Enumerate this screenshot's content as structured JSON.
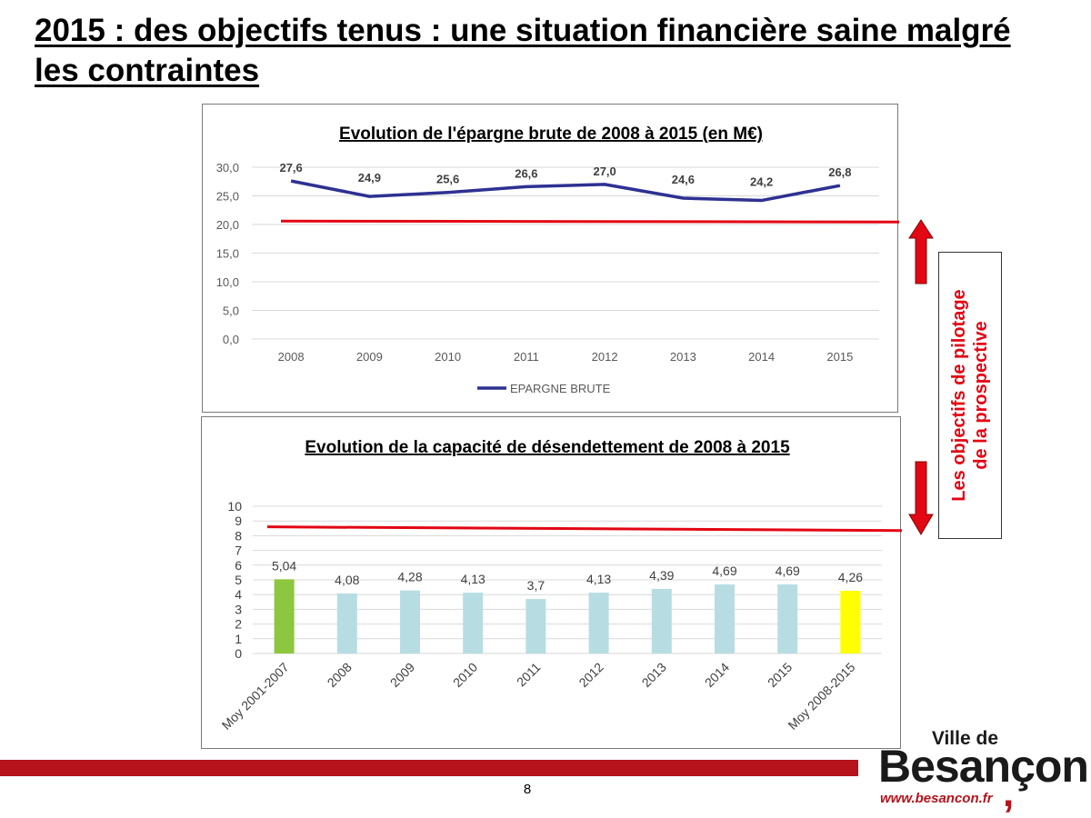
{
  "slide": {
    "title": "2015 : des objectifs tenus : une situation financière saine malgré les contraintes",
    "side_label_line1": "Les objectifs de pilotage",
    "side_label_line2": "de la prospective",
    "page_number": "8",
    "colors": {
      "accent_red": "#e30613",
      "band_red": "#b5121b",
      "line_navy": "#2e3192"
    }
  },
  "logo": {
    "line1": "Ville de",
    "line2": "Besançon",
    "url": "www.besancon.fr"
  },
  "chart_data": [
    {
      "type": "line",
      "title": "Evolution de l'épargne brute de 2008 à 2015 (en M€)",
      "categories": [
        "2008",
        "2009",
        "2010",
        "2011",
        "2012",
        "2013",
        "2014",
        "2015"
      ],
      "series": [
        {
          "name": "EPARGNE BRUTE",
          "values": [
            27.6,
            24.9,
            25.6,
            26.6,
            27.0,
            24.6,
            24.2,
            26.8
          ],
          "color": "#2e3192"
        }
      ],
      "data_labels": [
        "27,6",
        "24,9",
        "25,6",
        "26,6",
        "27,0",
        "24,6",
        "24,2",
        "26,8"
      ],
      "y_ticks": [
        "0,0",
        "5,0",
        "10,0",
        "15,0",
        "20,0",
        "25,0",
        "30,0"
      ],
      "ylim": [
        0,
        30
      ],
      "threshold_line": {
        "value": 20.6,
        "color": "#e30613"
      },
      "grid": true,
      "legend": "bottom"
    },
    {
      "type": "bar",
      "title": "Evolution de la capacité de désendettement de 2008 à 2015",
      "categories": [
        "Moy 2001-2007",
        "2008",
        "2009",
        "2010",
        "2011",
        "2012",
        "2013",
        "2014",
        "2015",
        "Moy 2008-2015"
      ],
      "values": [
        5.04,
        4.08,
        4.28,
        4.13,
        3.7,
        4.13,
        4.39,
        4.69,
        4.69,
        4.26
      ],
      "data_labels": [
        "5,04",
        "4,08",
        "4,28",
        "4,13",
        "3,7",
        "4,13",
        "4,39",
        "4,69",
        "4,69",
        "4,26"
      ],
      "bar_colors": [
        "#8dc63f",
        "#b7dde3",
        "#b7dde3",
        "#b7dde3",
        "#b7dde3",
        "#b7dde3",
        "#b7dde3",
        "#b7dde3",
        "#b7dde3",
        "#ffff00"
      ],
      "y_ticks": [
        "0",
        "1",
        "2",
        "3",
        "4",
        "5",
        "6",
        "7",
        "8",
        "9",
        "10"
      ],
      "ylim": [
        0,
        10
      ],
      "threshold_line": {
        "start": 8.6,
        "end": 8.35,
        "color": "#e30613"
      },
      "grid": true
    }
  ]
}
